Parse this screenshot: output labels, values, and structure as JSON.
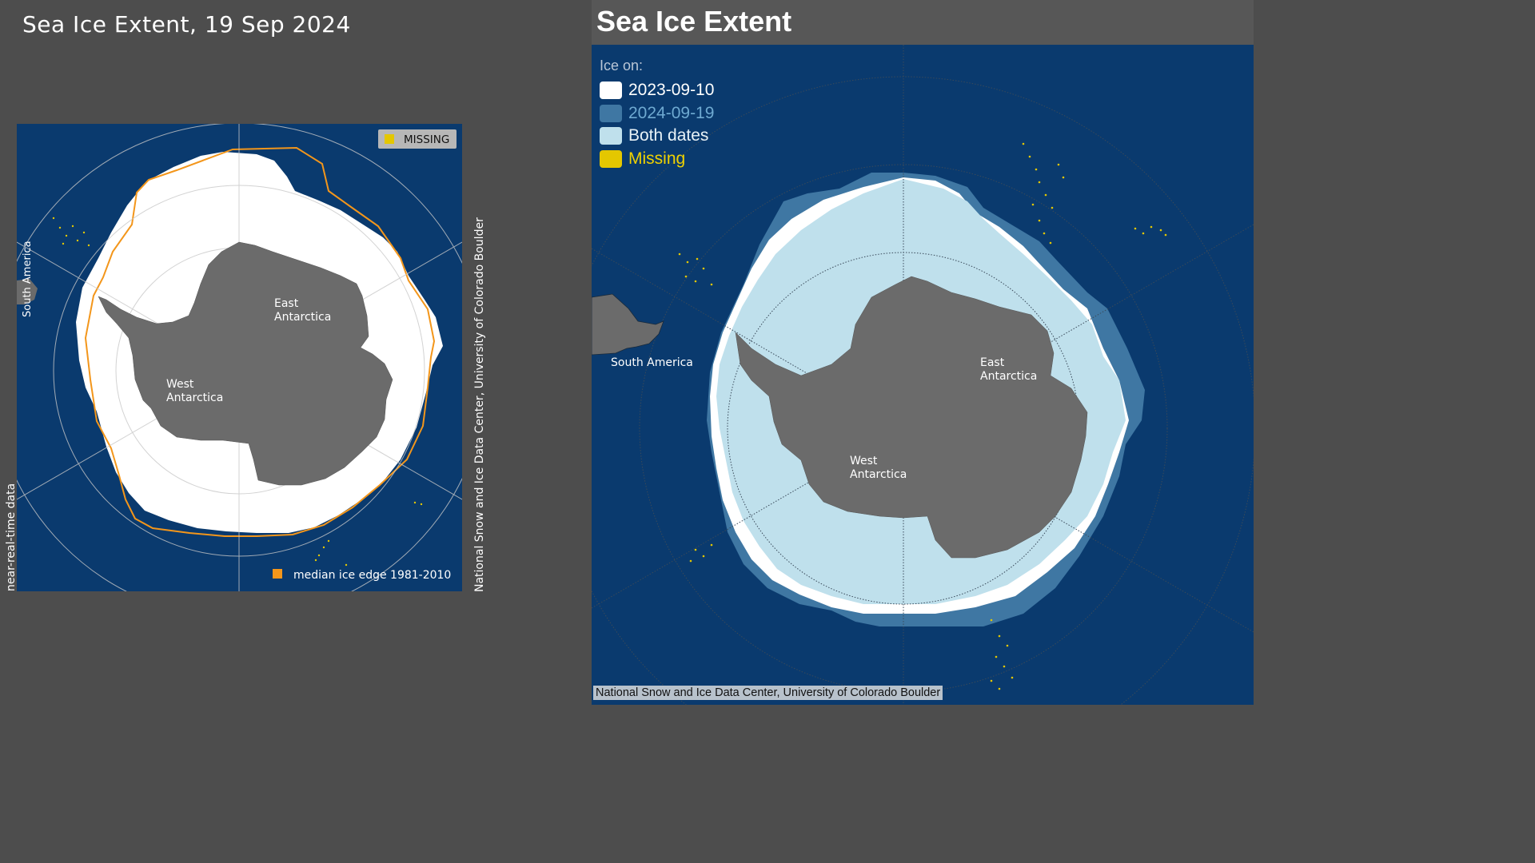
{
  "left": {
    "title": "Sea Ice Extent, 19 Sep 2024",
    "missing_label": "MISSING",
    "median_label": "median ice edge 1981-2010",
    "south_america_label": "South America",
    "east_antarctica_label": [
      "East",
      "Antarctica"
    ],
    "west_antarctica_label": [
      "West",
      "Antarctica"
    ],
    "nrt_label": "near-real-time data",
    "credit": "National Snow and Ice Data Center, University of Colorado Boulder"
  },
  "right": {
    "title": "Sea Ice Extent",
    "legend_heading": "Ice on:",
    "legend": [
      {
        "label": "2023-09-10",
        "color": "#ffffff",
        "text_color": "#ffffff"
      },
      {
        "label": "2024-09-19",
        "color": "#3f77a3",
        "text_color": "#6ea9d1"
      },
      {
        "label": "Both dates",
        "color": "#bfe0ec",
        "text_color": "#e8f2f7"
      },
      {
        "label": "Missing",
        "color": "#e4c700",
        "text_color": "#f0d200"
      }
    ],
    "south_america_label": "South America",
    "east_antarctica_label": [
      "East",
      "Antarctica"
    ],
    "west_antarctica_label": [
      "West",
      "Antarctica"
    ],
    "credit": "National Snow and Ice Data Center, University of Colorado Boulder"
  },
  "colors": {
    "ocean": "#0a3a6e",
    "land": "#6b6b6b",
    "ice": "#ffffff",
    "median_edge": "#f3961b",
    "missing": "#e4c700",
    "both_dates": "#bfe0ec",
    "ice_2024_only": "#3f77a3"
  }
}
